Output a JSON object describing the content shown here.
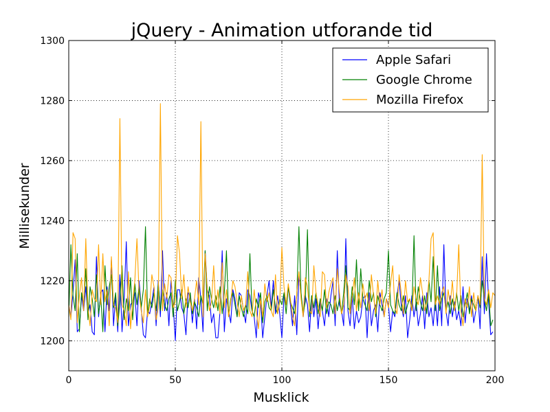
{
  "chart_data": {
    "type": "line",
    "title": "jQuery - Animation utforande tid",
    "xlabel": "Musklick",
    "ylabel": "Millisekunder",
    "xlim": [
      0,
      200
    ],
    "ylim": [
      1190,
      1300
    ],
    "xticks": [
      0,
      50,
      100,
      150,
      200
    ],
    "yticks": [
      1200,
      1220,
      1240,
      1260,
      1280,
      1300
    ],
    "grid": true,
    "legend_position": "top-right",
    "series": [
      {
        "name": "Apple Safari",
        "color": "#0000ff",
        "values": [
          1212,
          1208,
          1216,
          1227,
          1203,
          1204,
          1215,
          1210,
          1218,
          1209,
          1212,
          1203,
          1202,
          1228,
          1208,
          1216,
          1217,
          1203,
          1218,
          1210,
          1227,
          1205,
          1215,
          1203,
          1222,
          1203,
          1214,
          1233,
          1205,
          1212,
          1213,
          1216,
          1205,
          1220,
          1211,
          1202,
          1201,
          1210,
          1209,
          1213,
          1218,
          1205,
          1220,
          1208,
          1230,
          1210,
          1216,
          1205,
          1220,
          1212,
          1200,
          1217,
          1217,
          1211,
          1209,
          1202,
          1216,
          1215,
          1206,
          1214,
          1204,
          1221,
          1214,
          1203,
          1230,
          1217,
          1215,
          1206,
          1209,
          1201,
          1201,
          1210,
          1230,
          1203,
          1214,
          1210,
          1206,
          1217,
          1214,
          1208,
          1216,
          1215,
          1210,
          1206,
          1217,
          1215,
          1210,
          1208,
          1201,
          1216,
          1213,
          1201,
          1208,
          1215,
          1220,
          1211,
          1220,
          1209,
          1215,
          1209,
          1201,
          1215,
          1212,
          1218,
          1212,
          1205,
          1215,
          1202,
          1222,
          1215,
          1208,
          1215,
          1212,
          1203,
          1215,
          1208,
          1214,
          1204,
          1213,
          1210,
          1205,
          1214,
          1208,
          1215,
          1220,
          1205,
          1230,
          1212,
          1210,
          1205,
          1234,
          1210,
          1205,
          1215,
          1204,
          1210,
          1206,
          1208,
          1214,
          1215,
          1201,
          1216,
          1205,
          1210,
          1212,
          1203,
          1216,
          1212,
          1208,
          1214,
          1212,
          1203,
          1210,
          1208,
          1215,
          1220,
          1212,
          1208,
          1215,
          1201,
          1207,
          1215,
          1208,
          1213,
          1205,
          1209,
          1215,
          1204,
          1216,
          1208,
          1211,
          1205,
          1214,
          1205,
          1218,
          1205,
          1232,
          1210,
          1205,
          1215,
          1208,
          1213,
          1207,
          1210,
          1205,
          1218,
          1206,
          1214,
          1210,
          1215,
          1206,
          1210,
          1215,
          1204,
          1228,
          1209,
          1229,
          1213,
          1202,
          1203
        ]
      },
      {
        "name": "Google Chrome",
        "color": "#008000",
        "values": [
          1208,
          1232,
          1215,
          1210,
          1229,
          1203,
          1216,
          1212,
          1224,
          1207,
          1218,
          1214,
          1208,
          1222,
          1209,
          1215,
          1203,
          1225,
          1212,
          1218,
          1222,
          1211,
          1216,
          1205,
          1213,
          1225,
          1207,
          1214,
          1210,
          1221,
          1207,
          1219,
          1212,
          1218,
          1211,
          1217,
          1238,
          1209,
          1214,
          1211,
          1216,
          1210,
          1219,
          1210,
          1217,
          1212,
          1210,
          1214,
          1216,
          1208,
          1220,
          1210,
          1213,
          1217,
          1209,
          1214,
          1211,
          1216,
          1209,
          1213,
          1211,
          1208,
          1215,
          1212,
          1230,
          1210,
          1218,
          1214,
          1211,
          1215,
          1210,
          1218,
          1209,
          1216,
          1230,
          1208,
          1214,
          1216,
          1212,
          1208,
          1215,
          1211,
          1208,
          1212,
          1209,
          1229,
          1210,
          1208,
          1214,
          1211,
          1216,
          1206,
          1213,
          1215,
          1211,
          1210,
          1217,
          1211,
          1209,
          1214,
          1212,
          1216,
          1209,
          1218,
          1213,
          1211,
          1209,
          1215,
          1238,
          1216,
          1209,
          1213,
          1237,
          1208,
          1215,
          1211,
          1216,
          1209,
          1214,
          1210,
          1217,
          1209,
          1213,
          1212,
          1209,
          1215,
          1210,
          1214,
          1209,
          1216,
          1225,
          1211,
          1210,
          1218,
          1212,
          1227,
          1210,
          1224,
          1214,
          1212,
          1210,
          1220,
          1213,
          1216,
          1208,
          1215,
          1212,
          1210,
          1214,
          1216,
          1230,
          1212,
          1210,
          1209,
          1216,
          1212,
          1210,
          1215,
          1209,
          1212,
          1214,
          1210,
          1235,
          1210,
          1218,
          1213,
          1210,
          1215,
          1209,
          1220,
          1213,
          1228,
          1210,
          1225,
          1210,
          1214,
          1216,
          1210,
          1213,
          1209,
          1214,
          1210,
          1216,
          1210,
          1215,
          1208,
          1212,
          1216,
          1209,
          1214,
          1212,
          1210,
          1215,
          1211,
          1220,
          1214,
          1210,
          1216,
          1205,
          1207
        ]
      },
      {
        "name": "Mozilla Firefox",
        "color": "#ffa500",
        "values": [
          1212,
          1207,
          1236,
          1234,
          1206,
          1215,
          1221,
          1210,
          1234,
          1211,
          1205,
          1217,
          1214,
          1213,
          1232,
          1212,
          1229,
          1213,
          1217,
          1205,
          1228,
          1212,
          1211,
          1206,
          1274,
          1212,
          1210,
          1205,
          1223,
          1204,
          1213,
          1220,
          1234,
          1216,
          1210,
          1206,
          1217,
          1208,
          1212,
          1222,
          1218,
          1207,
          1211,
          1279,
          1210,
          1219,
          1214,
          1222,
          1221,
          1211,
          1213,
          1235,
          1229,
          1214,
          1222,
          1211,
          1218,
          1213,
          1210,
          1214,
          1220,
          1212,
          1273,
          1208,
          1229,
          1217,
          1210,
          1213,
          1225,
          1211,
          1217,
          1209,
          1226,
          1211,
          1217,
          1208,
          1213,
          1220,
          1218,
          1213,
          1208,
          1215,
          1210,
          1212,
          1223,
          1210,
          1208,
          1217,
          1210,
          1204,
          1214,
          1208,
          1219,
          1213,
          1216,
          1210,
          1208,
          1222,
          1209,
          1213,
          1231,
          1218,
          1212,
          1219,
          1214,
          1208,
          1205,
          1216,
          1223,
          1214,
          1208,
          1221,
          1218,
          1210,
          1209,
          1225,
          1216,
          1212,
          1208,
          1223,
          1222,
          1211,
          1216,
          1219,
          1221,
          1209,
          1224,
          1216,
          1209,
          1212,
          1222,
          1218,
          1209,
          1215,
          1221,
          1210,
          1216,
          1211,
          1219,
          1214,
          1216,
          1210,
          1222,
          1215,
          1209,
          1220,
          1212,
          1217,
          1208,
          1214,
          1211,
          1219,
          1225,
          1211,
          1209,
          1222,
          1216,
          1209,
          1220,
          1213,
          1214,
          1210,
          1218,
          1214,
          1212,
          1221,
          1216,
          1210,
          1213,
          1220,
          1234,
          1236,
          1212,
          1215,
          1212,
          1216,
          1218,
          1209,
          1217,
          1212,
          1220,
          1210,
          1215,
          1232,
          1210,
          1205,
          1214,
          1211,
          1218,
          1208,
          1216,
          1210,
          1215,
          1212,
          1262,
          1214,
          1212,
          1217,
          1211,
          1216,
          1215
        ]
      }
    ]
  }
}
